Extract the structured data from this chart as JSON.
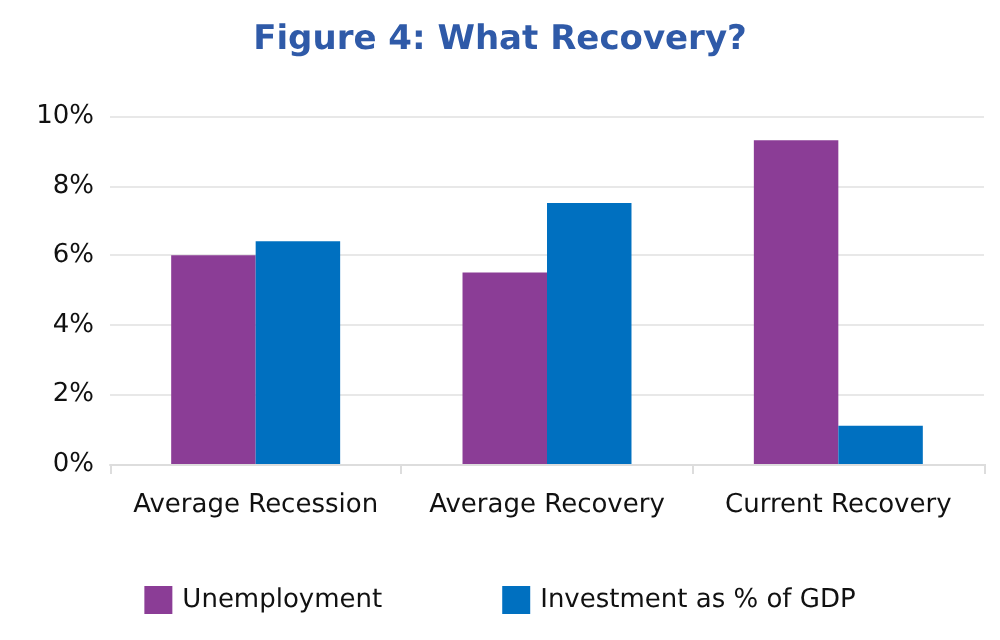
{
  "chart_data": {
    "type": "bar",
    "title": "Figure 4: What Recovery?",
    "categories": [
      "Average Recession",
      "Average Recovery",
      "Current Recovery"
    ],
    "series": [
      {
        "name": "Unemployment",
        "color": "#8b3d96",
        "values": [
          6.0,
          5.5,
          9.3
        ]
      },
      {
        "name": "Investment as % of GDP",
        "color": "#0070c0",
        "values": [
          6.4,
          7.5,
          1.1
        ]
      }
    ],
    "ylim": [
      0,
      10
    ],
    "yticks": [
      {
        "value": 0,
        "label": "0%"
      },
      {
        "value": 2,
        "label": "2%"
      },
      {
        "value": 4,
        "label": "4%"
      },
      {
        "value": 6,
        "label": "6%"
      },
      {
        "value": 8,
        "label": "8%"
      },
      {
        "value": 10,
        "label": "10%"
      }
    ],
    "grid": "y",
    "legend": "bottom"
  }
}
